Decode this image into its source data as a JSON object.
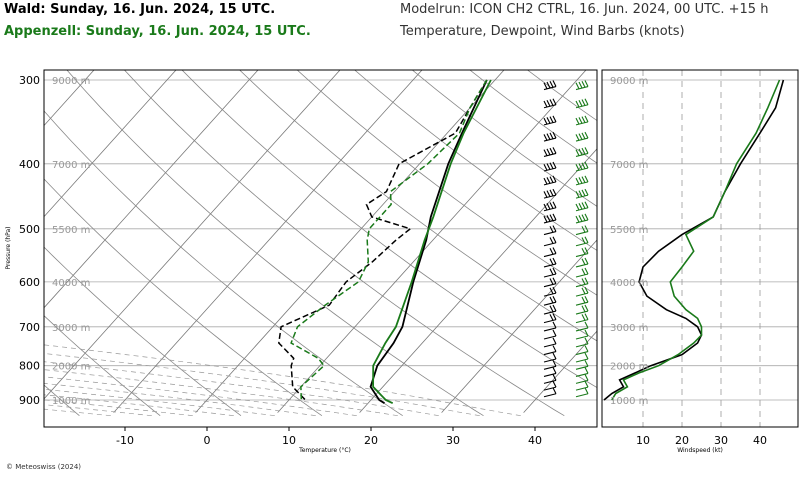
{
  "header": {
    "title_location1": "Wald: Sunday, 16. Jun. 2024, 15 UTC.",
    "title_location2": "Appenzell: Sunday, 16. Jun. 2024, 15 UTC.",
    "modelrun": "Modelrun: ICON CH2 CTRL, 16. Jun. 2024, 00 UTC. +15 h",
    "subtitle": "Temperature, Dewpoint, Wind Barbs (knots)"
  },
  "footer": {
    "copyright": "© Meteoswiss (2024)"
  },
  "colors": {
    "wald": "#000000",
    "appenzell": "#1a7a1a",
    "grid": "#888888"
  },
  "chart_data": [
    {
      "type": "line",
      "subtype": "skew-t",
      "xlabel": "Temperature (°C)",
      "ylabel": "Pressure (hPa)",
      "xlim": [
        -20,
        45
      ],
      "x_ticks": [
        -10,
        0,
        10,
        20,
        30,
        40
      ],
      "pressure_ticks": [
        300,
        400,
        500,
        600,
        700,
        800,
        900
      ],
      "altitude_labels": [
        "9000 m",
        "7000 m",
        "5500 m",
        "4000 m",
        "3000 m",
        "2000 m",
        "1000 m"
      ],
      "series": [
        {
          "name": "Wald",
          "kind": "temperature",
          "points": [
            [
              300,
              -1
            ],
            [
              360,
              1.8
            ],
            [
              400,
              3.5
            ],
            [
              480,
              7.2
            ],
            [
              520,
              9.2
            ],
            [
              600,
              12.2
            ],
            [
              700,
              15.8
            ],
            [
              740,
              16.5
            ],
            [
              800,
              17
            ],
            [
              860,
              18.5
            ],
            [
              900,
              21
            ],
            [
              910,
              22
            ]
          ]
        },
        {
          "name": "Wald",
          "kind": "dewpoint",
          "points": [
            [
              300,
              -1
            ],
            [
              330,
              0
            ],
            [
              360,
              1
            ],
            [
              400,
              -2.5
            ],
            [
              440,
              -1
            ],
            [
              460,
              -2
            ],
            [
              480,
              0
            ],
            [
              500,
              6
            ],
            [
              520,
              5.5
            ],
            [
              560,
              5
            ],
            [
              600,
              4
            ],
            [
              650,
              4.5
            ],
            [
              700,
              1
            ],
            [
              740,
              2.5
            ],
            [
              780,
              6
            ],
            [
              800,
              6.5
            ],
            [
              860,
              9
            ],
            [
              900,
              12
            ]
          ]
        },
        {
          "name": "Appenzell",
          "kind": "temperature",
          "points": [
            [
              300,
              -0.5
            ],
            [
              360,
              2
            ],
            [
              400,
              3.8
            ],
            [
              480,
              7.5
            ],
            [
              520,
              9
            ],
            [
              600,
              12
            ],
            [
              700,
              15
            ],
            [
              740,
              15.5
            ],
            [
              800,
              16.5
            ],
            [
              860,
              18.8
            ],
            [
              900,
              21.8
            ],
            [
              910,
              23
            ]
          ]
        },
        {
          "name": "Appenzell",
          "kind": "dewpoint",
          "points": [
            [
              300,
              -1
            ],
            [
              330,
              0
            ],
            [
              360,
              1.5
            ],
            [
              400,
              1
            ],
            [
              440,
              -0.5
            ],
            [
              460,
              1
            ],
            [
              500,
              1
            ],
            [
              520,
              2
            ],
            [
              560,
              4.5
            ],
            [
              600,
              5.5
            ],
            [
              650,
              4
            ],
            [
              700,
              3
            ],
            [
              740,
              4
            ],
            [
              780,
              9
            ],
            [
              800,
              10.5
            ],
            [
              860,
              10
            ],
            [
              900,
              11.5
            ]
          ]
        }
      ]
    },
    {
      "type": "line",
      "subtype": "wind-profile",
      "xlabel": "Windspeed (kt)",
      "xlim": [
        0,
        40
      ],
      "x_ticks": [
        10,
        20,
        30,
        40
      ],
      "series": [
        {
          "name": "Wald",
          "points": [
            [
              900,
              0
            ],
            [
              880,
              2
            ],
            [
              860,
              5
            ],
            [
              840,
              4
            ],
            [
              820,
              8
            ],
            [
              800,
              12
            ],
            [
              770,
              20
            ],
            [
              740,
              24
            ],
            [
              720,
              25
            ],
            [
              700,
              24
            ],
            [
              680,
              21
            ],
            [
              660,
              16
            ],
            [
              630,
              11
            ],
            [
              600,
              9
            ],
            [
              570,
              10
            ],
            [
              540,
              14
            ],
            [
              510,
              20
            ],
            [
              480,
              28
            ],
            [
              440,
              31
            ],
            [
              400,
              35
            ],
            [
              360,
              40
            ],
            [
              330,
              44
            ],
            [
              300,
              46
            ]
          ]
        },
        {
          "name": "Appenzell",
          "points": [
            [
              900,
              2
            ],
            [
              880,
              3
            ],
            [
              860,
              6
            ],
            [
              840,
              5
            ],
            [
              820,
              9
            ],
            [
              800,
              14
            ],
            [
              770,
              19
            ],
            [
              740,
              23
            ],
            [
              720,
              25
            ],
            [
              700,
              25
            ],
            [
              680,
              24
            ],
            [
              660,
              21
            ],
            [
              630,
              18
            ],
            [
              600,
              17
            ],
            [
              570,
              20
            ],
            [
              540,
              23
            ],
            [
              510,
              21
            ],
            [
              480,
              28
            ],
            [
              440,
              31
            ],
            [
              400,
              34
            ],
            [
              360,
              39
            ],
            [
              330,
              42
            ],
            [
              300,
              45
            ]
          ]
        }
      ]
    }
  ]
}
